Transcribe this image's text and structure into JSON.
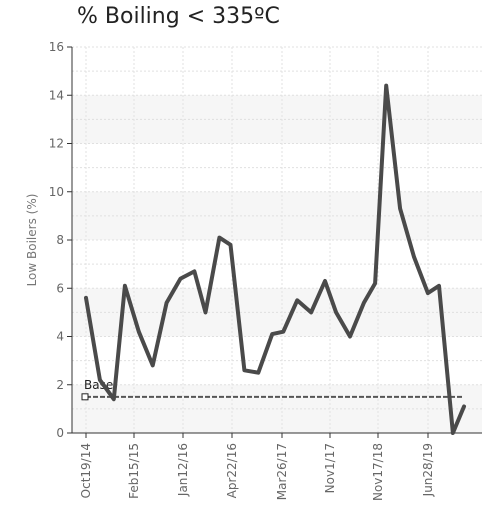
{
  "chart_data": {
    "type": "line",
    "title": "% Boiling < 335ºC",
    "ylabel": "Low Boilers (%)",
    "xlabel": "",
    "ylim": [
      0,
      16
    ],
    "y_ticks": [
      "0",
      "2",
      "4",
      "6",
      "8",
      "10",
      "12",
      "14",
      "16"
    ],
    "x_tick_labels": [
      "Oct19/14",
      "Feb15/15",
      "Jan12/16",
      "Apr22/16",
      "Mar26/17",
      "Nov1/17",
      "Nov17/18",
      "Jun28/19"
    ],
    "grid": true,
    "series": [
      {
        "values": [
          5.6,
          2.2,
          1.4,
          6.1,
          4.2,
          2.8,
          5.4,
          6.4,
          6.7,
          5.0,
          8.1,
          7.8,
          2.6,
          2.5,
          4.1,
          4.2,
          5.5,
          5.0,
          6.3,
          5.0,
          4.0,
          5.4,
          6.2,
          14.4,
          9.3,
          7.3,
          5.8,
          6.1,
          0.0,
          1.1
        ],
        "x_index": [
          0,
          0.5,
          1.0,
          1.4,
          1.9,
          2.4,
          2.9,
          3.4,
          3.9,
          4.3,
          4.8,
          5.2,
          5.7,
          6.2,
          6.7,
          7.1,
          7.6,
          8.1,
          8.6,
          9.0,
          9.5,
          10.0,
          10.4,
          10.8,
          11.3,
          11.8,
          12.3,
          12.7,
          13.2,
          13.6
        ],
        "color": "#4a4a4a"
      },
      {
        "name": "Base",
        "values": [
          1.5,
          1.5
        ],
        "x_index": [
          0,
          13.6
        ],
        "color": "#555555"
      }
    ]
  }
}
